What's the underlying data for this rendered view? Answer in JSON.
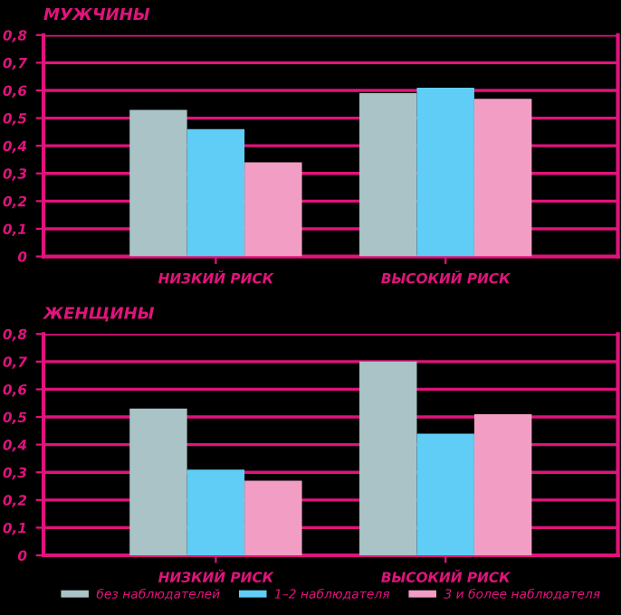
{
  "chart_data": [
    {
      "type": "bar",
      "title": "МУЖЧИНЫ",
      "categories": [
        "НИЗКИЙ РИСК",
        "ВЫСОКИЙ РИСК"
      ],
      "series": [
        {
          "color": "#a9c3c6",
          "values": [
            0.53,
            0.59
          ]
        },
        {
          "color": "#5fcdf5",
          "values": [
            0.46,
            0.61
          ]
        },
        {
          "color": "#f29ec4",
          "values": [
            0.34,
            0.57
          ]
        }
      ],
      "ylim": [
        0,
        0.8
      ],
      "yticks": [
        0,
        {
          "value": 0.1,
          "label": "0,1"
        },
        {
          "value": 0.2,
          "label": "0,2"
        },
        {
          "value": 0.3,
          "label": "0,3"
        },
        {
          "value": 0.4,
          "label": "0,4"
        },
        {
          "value": 0.5,
          "label": "0,5"
        },
        {
          "value": 0.6,
          "label": "0,6"
        },
        {
          "value": 0.7,
          "label": "0,7"
        },
        {
          "value": 0.8,
          "label": "0,8"
        }
      ],
      "grid": "y",
      "legend": false
    },
    {
      "type": "bar",
      "title": "ЖЕНЩИНЫ",
      "categories": [
        "НИЗКИЙ РИСК",
        "ВЫСОКИЙ РИСК"
      ],
      "series": [
        {
          "name": "без наблюдателей",
          "color": "#a9c3c6",
          "values": [
            0.53,
            0.7
          ]
        },
        {
          "name": "1–2 наблюдателя",
          "color": "#5fcdf5",
          "values": [
            0.31,
            0.44
          ]
        },
        {
          "name": "3 и более наблюдателя",
          "color": "#f29ec4",
          "values": [
            0.27,
            0.51
          ]
        }
      ],
      "ylim": [
        0,
        0.8
      ],
      "yticks": [
        0,
        {
          "value": 0.1,
          "label": "0,1"
        },
        {
          "value": 0.2,
          "label": "0,2"
        },
        {
          "value": 0.3,
          "label": "0,3"
        },
        {
          "value": 0.4,
          "label": "0,4"
        },
        {
          "value": 0.5,
          "label": "0,5"
        },
        {
          "value": 0.6,
          "label": "0,6"
        },
        {
          "value": 0.7,
          "label": "0,7"
        },
        {
          "value": 0.8,
          "label": "0,8"
        }
      ],
      "grid": "y",
      "legend": "bottom"
    }
  ]
}
